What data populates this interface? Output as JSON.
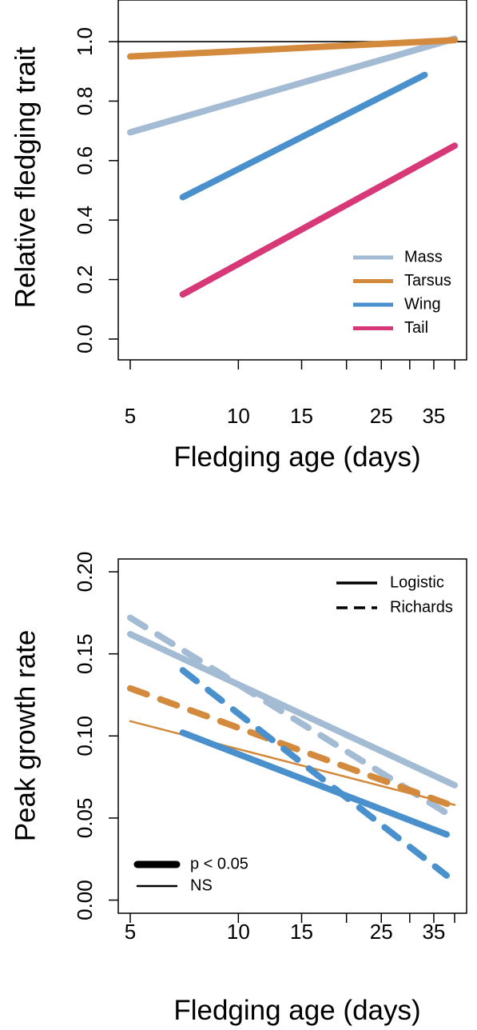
{
  "chart_data": [
    {
      "type": "line",
      "xlabel": "Fledging age (days)",
      "ylabel": "Relative fledging trait",
      "x_scale": "log",
      "xlim": [
        5,
        40
      ],
      "ylim": [
        0,
        1.1
      ],
      "x_ticks": [
        5,
        10,
        15,
        25,
        35
      ],
      "x_minor_ticks": [
        20,
        30,
        40
      ],
      "y_ticks": [
        "0.0",
        "0.2",
        "0.4",
        "0.6",
        "0.8",
        "1.0"
      ],
      "reference_line": {
        "y": 1.0
      },
      "legend_position": "bottom-right",
      "series": [
        {
          "name": "Mass",
          "color": "#a3bcd4",
          "x": [
            5,
            40
          ],
          "y": [
            0.695,
            1.01
          ]
        },
        {
          "name": "Tarsus",
          "color": "#d38a3c",
          "x": [
            5,
            40
          ],
          "y": [
            0.95,
            1.005
          ]
        },
        {
          "name": "Wing",
          "color": "#4990cc",
          "x": [
            7,
            33
          ],
          "y": [
            0.477,
            0.888
          ]
        },
        {
          "name": "Tail",
          "color": "#d63878",
          "x": [
            7,
            40
          ],
          "y": [
            0.15,
            0.65
          ]
        }
      ]
    },
    {
      "type": "line",
      "xlabel": "Fledging age (days)",
      "ylabel": "Peak growth rate",
      "x_scale": "log",
      "xlim": [
        5,
        40
      ],
      "ylim": [
        0,
        0.2
      ],
      "x_ticks": [
        5,
        10,
        15,
        25,
        35
      ],
      "x_minor_ticks": [
        20,
        30,
        40
      ],
      "y_ticks": [
        "0.00",
        "0.05",
        "0.10",
        "0.15",
        "0.20"
      ],
      "legend_model": [
        {
          "label": "Logistic",
          "dash": "solid"
        },
        {
          "label": "Richards",
          "dash": "dashed"
        }
      ],
      "legend_model_position": "top-right",
      "legend_significance": [
        {
          "label": "p < 0.05",
          "weight": "thick"
        },
        {
          "label": "NS",
          "weight": "thin"
        }
      ],
      "legend_significance_position": "bottom-left",
      "series": [
        {
          "trait": "Mass",
          "model": "Logistic",
          "significance": "p < 0.05",
          "color": "#a3bcd4",
          "x": [
            5,
            40
          ],
          "y": [
            0.162,
            0.07
          ]
        },
        {
          "trait": "Mass",
          "model": "Richards",
          "significance": "p < 0.05",
          "color": "#a3bcd4",
          "x": [
            5,
            40
          ],
          "y": [
            0.172,
            0.05
          ]
        },
        {
          "trait": "Tarsus",
          "model": "Logistic",
          "significance": "NS",
          "color": "#d38a3c",
          "x": [
            5,
            40
          ],
          "y": [
            0.109,
            0.058
          ]
        },
        {
          "trait": "Tarsus",
          "model": "Richards",
          "significance": "p < 0.05",
          "color": "#d38a3c",
          "x": [
            5,
            40
          ],
          "y": [
            0.129,
            0.057
          ]
        },
        {
          "trait": "Wing",
          "model": "Logistic",
          "significance": "p < 0.05",
          "color": "#4990cc",
          "x": [
            7,
            38
          ],
          "y": [
            0.102,
            0.04
          ]
        },
        {
          "trait": "Wing",
          "model": "Richards",
          "significance": "p < 0.05",
          "color": "#4990cc",
          "x": [
            7,
            38
          ],
          "y": [
            0.14,
            0.015
          ]
        }
      ]
    }
  ]
}
